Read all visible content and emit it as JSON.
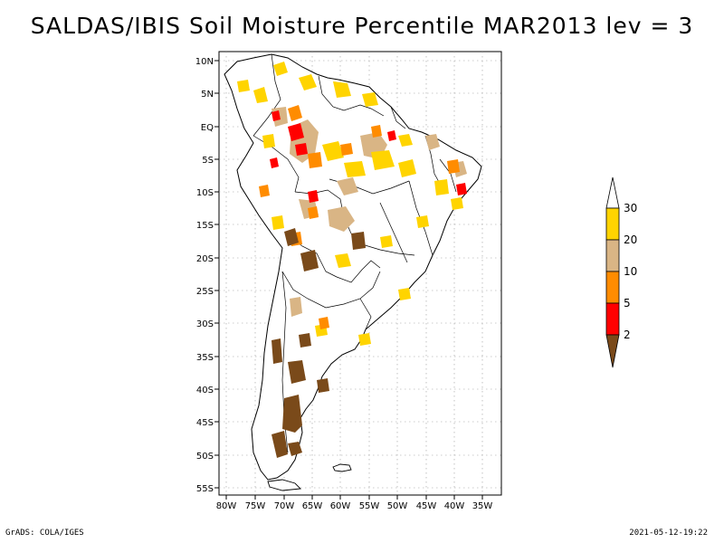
{
  "title": "SALDAS/IBIS Soil Moisture Percentile MAR2013 lev = 3",
  "lat_ticks": [
    "10N",
    "5N",
    "EQ",
    "5S",
    "10S",
    "15S",
    "20S",
    "25S",
    "30S",
    "35S",
    "40S",
    "45S",
    "50S",
    "55S"
  ],
  "lon_ticks": [
    "80W",
    "75W",
    "70W",
    "65W",
    "60W",
    "55W",
    "50W",
    "45W",
    "40W",
    "35W"
  ],
  "legend": {
    "labels": [
      "30",
      "20",
      "10",
      "5",
      "2"
    ],
    "colors": [
      "#ffffff",
      "#ffd400",
      "#d9b585",
      "#ff8c00",
      "#ff0000",
      "#7a4a1a"
    ]
  },
  "footer_left": "GrADS: COLA/IGES",
  "footer_right": "2021-05-12-19:22"
}
